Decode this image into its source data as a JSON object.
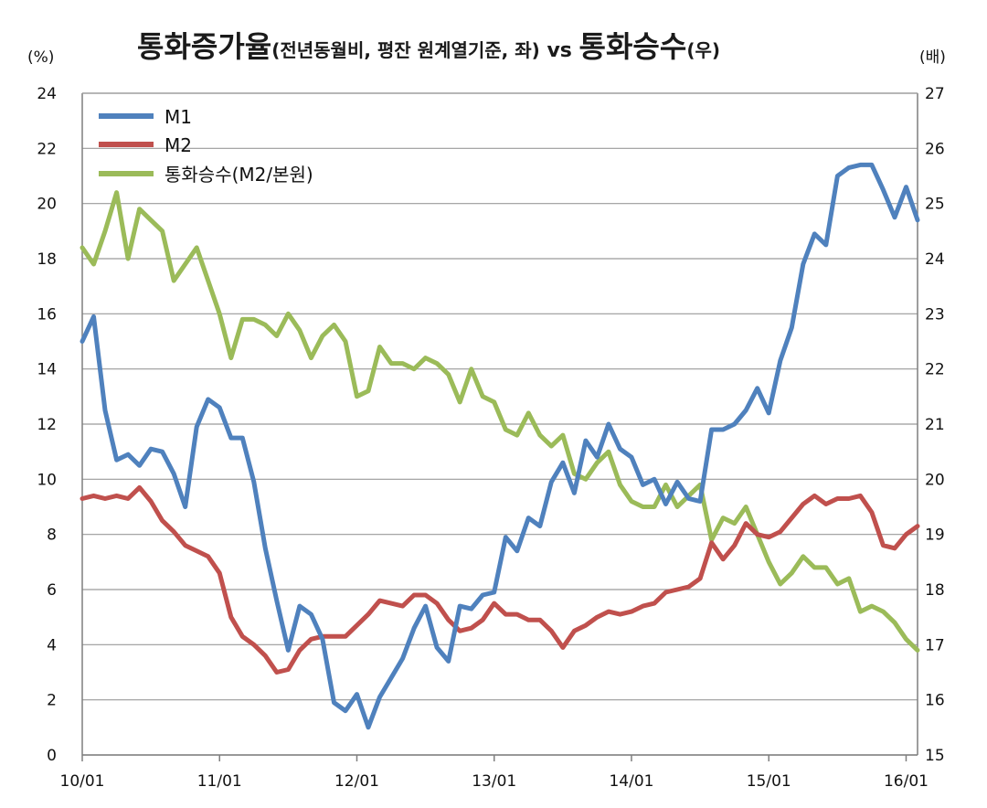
{
  "chart_data": {
    "type": "line",
    "title": {
      "part1": "통화증가율",
      "part2": "(전년동월비, 평잔 원계열기준, 좌)",
      "part3": " vs ",
      "part4": "통화승수",
      "part5": "(우)"
    },
    "left_unit": "(%)",
    "right_unit": "(배)",
    "ylim_left": [
      0,
      24
    ],
    "ylim_right": [
      15,
      27
    ],
    "left_ticks": [
      "0",
      "2",
      "4",
      "6",
      "8",
      "10",
      "12",
      "14",
      "16",
      "18",
      "20",
      "22",
      "24"
    ],
    "right_ticks": [
      "15",
      "16",
      "17",
      "18",
      "19",
      "20",
      "21",
      "22",
      "23",
      "24",
      "25",
      "26",
      "27"
    ],
    "x_ticks": [
      "10/01",
      "11/01",
      "12/01",
      "13/01",
      "14/01",
      "15/01",
      "16/01"
    ],
    "x_range_months": [
      0,
      73
    ],
    "grid": true,
    "legend_position": "top-left",
    "series": [
      {
        "name": "M1",
        "axis": "left",
        "color": "#4f81bd",
        "x": [
          0,
          1,
          2,
          3,
          4,
          5,
          6,
          7,
          8,
          9,
          10,
          11,
          12,
          13,
          14,
          15,
          16,
          17,
          18,
          19,
          20,
          21,
          22,
          23,
          24,
          25,
          26,
          27,
          28,
          29,
          30,
          31,
          32,
          33,
          34,
          35,
          36,
          37,
          38,
          39,
          40,
          41,
          42,
          43,
          44,
          45,
          46,
          47,
          48,
          49,
          50,
          51,
          52,
          53,
          54,
          55,
          56,
          57,
          58,
          59,
          60,
          61,
          62,
          63,
          64,
          65,
          66,
          67,
          68,
          69,
          70,
          71,
          72,
          73
        ],
        "values": [
          15.0,
          15.9,
          12.5,
          10.7,
          10.9,
          10.5,
          11.1,
          11.0,
          10.2,
          9.0,
          11.9,
          12.9,
          12.6,
          11.5,
          11.5,
          9.9,
          7.5,
          5.6,
          3.8,
          5.4,
          5.1,
          4.2,
          1.9,
          1.6,
          2.2,
          1.0,
          2.1,
          2.8,
          3.5,
          4.6,
          5.4,
          3.9,
          3.4,
          5.4,
          5.3,
          5.8,
          5.9,
          7.9,
          7.4,
          8.6,
          8.3,
          9.9,
          10.6,
          9.5,
          11.4,
          10.8,
          12.0,
          11.1,
          10.8,
          9.8,
          10.0,
          9.1,
          9.9,
          9.3,
          9.2,
          11.8,
          11.8,
          12.0,
          12.5,
          13.3,
          12.4,
          14.3,
          15.5,
          17.8,
          18.9,
          18.5,
          21.0,
          21.3,
          21.4,
          21.4,
          20.5,
          19.5,
          20.6,
          19.4
        ]
      },
      {
        "name": "M2",
        "axis": "left",
        "color": "#c0504d",
        "x": [
          0,
          1,
          2,
          3,
          4,
          5,
          6,
          7,
          8,
          9,
          10,
          11,
          12,
          13,
          14,
          15,
          16,
          17,
          18,
          19,
          20,
          21,
          22,
          23,
          24,
          25,
          26,
          27,
          28,
          29,
          30,
          31,
          32,
          33,
          34,
          35,
          36,
          37,
          38,
          39,
          40,
          41,
          42,
          43,
          44,
          45,
          46,
          47,
          48,
          49,
          50,
          51,
          52,
          53,
          54,
          55,
          56,
          57,
          58,
          59,
          60,
          61,
          62,
          63,
          64,
          65,
          66,
          67,
          68,
          69,
          70,
          71,
          72,
          73
        ],
        "values": [
          9.3,
          9.4,
          9.3,
          9.4,
          9.3,
          9.7,
          9.2,
          8.5,
          8.1,
          7.6,
          7.4,
          7.2,
          6.6,
          5.0,
          4.3,
          4.0,
          3.6,
          3.0,
          3.1,
          3.8,
          4.2,
          4.3,
          4.3,
          4.3,
          4.7,
          5.1,
          5.6,
          5.5,
          5.4,
          5.8,
          5.8,
          5.5,
          4.9,
          4.5,
          4.6,
          4.9,
          5.5,
          5.1,
          5.1,
          4.9,
          4.9,
          4.5,
          3.9,
          4.5,
          4.7,
          5.0,
          5.2,
          5.1,
          5.2,
          5.4,
          5.5,
          5.9,
          6.0,
          6.1,
          6.4,
          7.7,
          7.1,
          7.6,
          8.4,
          8.0,
          7.9,
          8.1,
          8.6,
          9.1,
          9.4,
          9.1,
          9.3,
          9.3,
          9.4,
          8.8,
          7.6,
          7.5,
          8.0,
          8.3
        ]
      },
      {
        "name": "통화승수(M2/본원)",
        "axis": "right",
        "color": "#9bbb59",
        "x": [
          0,
          1,
          2,
          3,
          4,
          5,
          6,
          7,
          8,
          9,
          10,
          11,
          12,
          13,
          14,
          15,
          16,
          17,
          18,
          19,
          20,
          21,
          22,
          23,
          24,
          25,
          26,
          27,
          28,
          29,
          30,
          31,
          32,
          33,
          34,
          35,
          36,
          37,
          38,
          39,
          40,
          41,
          42,
          43,
          44,
          45,
          46,
          47,
          48,
          49,
          50,
          51,
          52,
          53,
          54,
          55,
          56,
          57,
          58,
          59,
          60,
          61,
          62,
          63,
          64,
          65,
          66,
          67,
          68,
          69,
          70,
          71,
          72,
          73
        ],
        "values": [
          24.2,
          23.9,
          24.5,
          25.2,
          24.0,
          24.9,
          24.7,
          24.5,
          23.6,
          23.9,
          24.2,
          23.6,
          23.0,
          22.2,
          22.9,
          22.9,
          22.8,
          22.6,
          23.0,
          22.7,
          22.2,
          22.6,
          22.8,
          22.5,
          21.5,
          21.6,
          22.4,
          22.1,
          22.1,
          22.0,
          22.2,
          22.1,
          21.9,
          21.4,
          22.0,
          21.5,
          21.4,
          20.9,
          20.8,
          21.2,
          20.8,
          20.6,
          20.8,
          20.1,
          20.0,
          20.3,
          20.5,
          19.9,
          19.6,
          19.5,
          19.5,
          19.9,
          19.5,
          19.7,
          19.9,
          18.9,
          19.3,
          19.2,
          19.5,
          19.0,
          18.5,
          18.1,
          18.3,
          18.6,
          18.4,
          18.4,
          18.1,
          18.2,
          17.6,
          17.7,
          17.6,
          17.4,
          17.1,
          16.9
        ]
      }
    ]
  }
}
